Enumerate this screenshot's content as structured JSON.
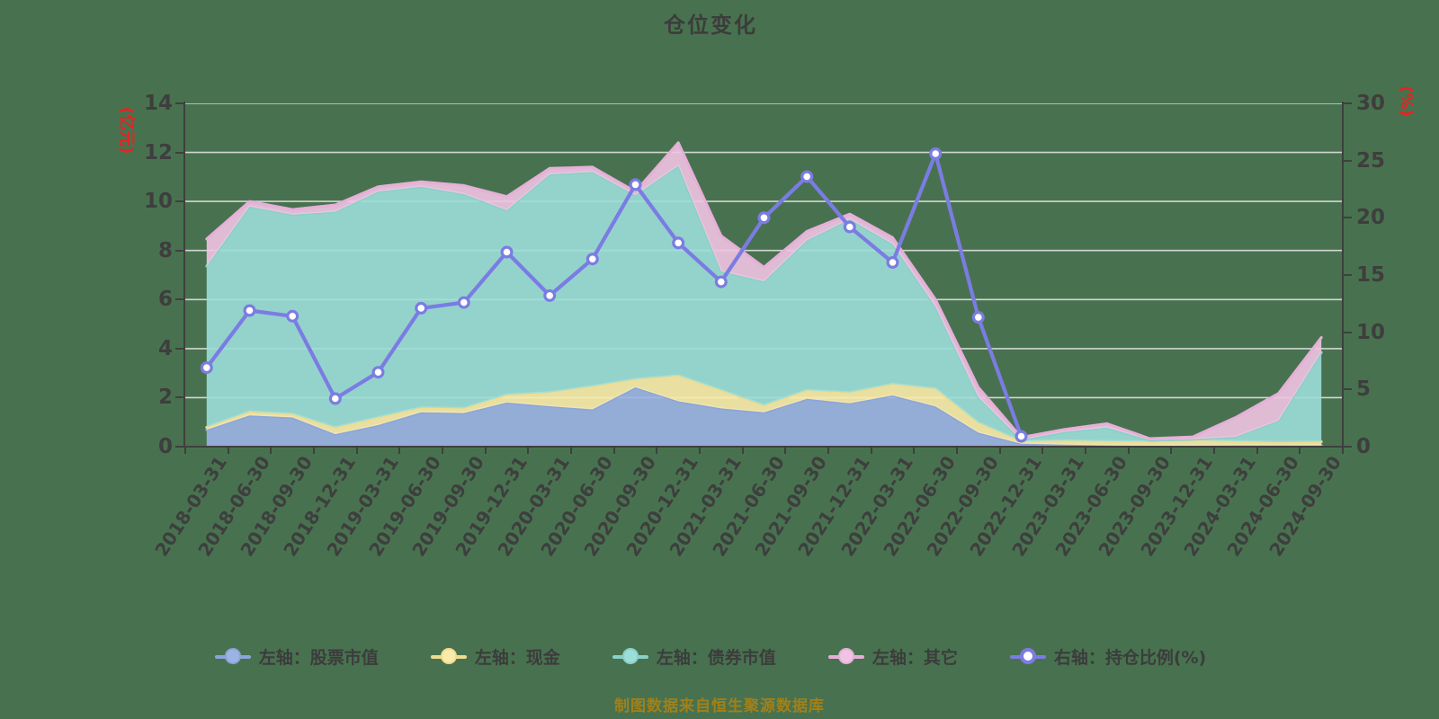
{
  "title": "仓位变化",
  "footer_note": "制图数据来自恒生聚源数据库",
  "left_axis": {
    "name": "(亿元)",
    "ticks": [
      0,
      2,
      4,
      6,
      8,
      10,
      12,
      14
    ],
    "max": 14
  },
  "right_axis": {
    "name": "(%)",
    "ticks": [
      0,
      5,
      10,
      15,
      20,
      25,
      30
    ],
    "max": 30
  },
  "colors": {
    "background": "#48724F",
    "axis": "#3F3F3F",
    "grid": "#E9E9E9",
    "title_text": "#3C3C3C",
    "axis_name_red": "#E82222",
    "footer_gold": "#A1801A",
    "stock_line": "#8AA5DA",
    "stock_fill": "#9CB4E4",
    "cash_line": "#F0DC90",
    "cash_fill": "#FBEBAA",
    "bond_line": "#89D0C9",
    "bond_fill": "#9CDED8",
    "other_line": "#E6AFD9",
    "other_fill": "#EFC4E2",
    "ratio_line": "#7B7CE3",
    "ratio_dot_fill": "#FFFFFF"
  },
  "legend": [
    {
      "label": "左轴：股票市值",
      "series": "stock",
      "marker": "filled-circle"
    },
    {
      "label": "左轴：现金",
      "series": "cash",
      "marker": "filled-circle"
    },
    {
      "label": "左轴：债券市值",
      "series": "bond",
      "marker": "filled-circle"
    },
    {
      "label": "左轴：其它",
      "series": "other",
      "marker": "filled-circle"
    },
    {
      "label": "右轴：持仓比例(%)",
      "series": "ratio",
      "marker": "open-circle"
    }
  ],
  "chart_data": {
    "type": "area",
    "subtype": "stacked-area-with-line",
    "grid": true,
    "legend_position": "bottom",
    "categories": [
      "2018-03-31",
      "2018-06-30",
      "2018-09-30",
      "2018-12-31",
      "2019-03-31",
      "2019-06-30",
      "2019-09-30",
      "2019-12-31",
      "2020-03-31",
      "2020-06-30",
      "2020-09-30",
      "2020-12-31",
      "2021-03-31",
      "2021-06-30",
      "2021-09-30",
      "2021-12-31",
      "2022-03-31",
      "2022-06-30",
      "2022-09-30",
      "2022-12-31",
      "2023-03-31",
      "2023-06-30",
      "2023-09-30",
      "2023-12-31",
      "2024-03-31",
      "2024-06-30",
      "2024-09-30"
    ],
    "left_axis_label": "(亿元)",
    "right_axis_label": "(%)",
    "ylim_left": [
      0,
      14
    ],
    "ylim_right": [
      0,
      30
    ],
    "series": [
      {
        "name": "左轴：股票市值",
        "key": "stock",
        "type": "area",
        "stack": true,
        "axis": "left",
        "values": [
          0.69,
          1.27,
          1.19,
          0.51,
          0.88,
          1.4,
          1.37,
          1.8,
          1.65,
          1.52,
          2.42,
          1.85,
          1.56,
          1.4,
          1.95,
          1.77,
          2.09,
          1.64,
          0.57,
          0.12,
          0.08,
          0.05,
          0.04,
          0.04,
          0.05,
          0.05,
          0.05
        ]
      },
      {
        "name": "左轴：现金",
        "key": "cash",
        "type": "area",
        "stack": true,
        "axis": "left",
        "values": [
          0.1,
          0.16,
          0.14,
          0.27,
          0.31,
          0.19,
          0.19,
          0.31,
          0.56,
          0.94,
          0.33,
          1.05,
          0.74,
          0.28,
          0.35,
          0.44,
          0.46,
          0.72,
          0.4,
          0.1,
          0.17,
          0.17,
          0.16,
          0.22,
          0.17,
          0.13,
          0.15
        ]
      },
      {
        "name": "左轴：债券市值",
        "key": "bond",
        "type": "area",
        "stack": true,
        "axis": "left",
        "values": [
          6.57,
          8.36,
          8.13,
          8.8,
          9.21,
          9.01,
          8.74,
          7.53,
          8.89,
          8.74,
          7.5,
          8.55,
          4.85,
          5.06,
          6.11,
          7.06,
          5.71,
          3.33,
          1.04,
          0.06,
          0.35,
          0.56,
          0.06,
          0.04,
          0.18,
          0.88,
          3.64
        ]
      },
      {
        "name": "左轴：其它",
        "key": "other",
        "type": "area",
        "stack": true,
        "axis": "left",
        "values": [
          1.11,
          0.21,
          0.21,
          0.28,
          0.2,
          0.2,
          0.35,
          0.56,
          0.25,
          0.2,
          0.15,
          0.95,
          1.45,
          0.58,
          0.37,
          0.22,
          0.27,
          0.31,
          0.41,
          0.1,
          0.1,
          0.16,
          0.07,
          0.1,
          0.79,
          1.11,
          0.61
        ]
      },
      {
        "name": "右轴：持仓比例(%)",
        "key": "ratio",
        "type": "line",
        "stack": false,
        "axis": "right",
        "values": [
          6.9,
          11.9,
          11.4,
          4.2,
          6.5,
          12.1,
          12.6,
          17.0,
          13.2,
          16.4,
          22.9,
          17.8,
          14.4,
          20.0,
          23.6,
          19.2,
          16.1,
          25.6,
          11.3,
          0.9,
          null,
          null,
          null,
          null,
          null,
          null,
          null
        ]
      }
    ]
  }
}
